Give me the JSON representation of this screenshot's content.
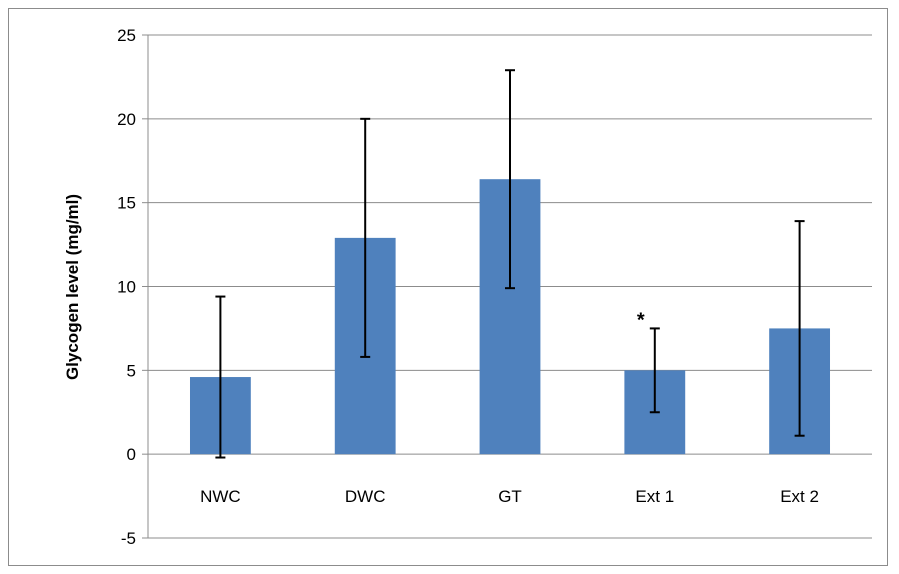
{
  "chart_data": {
    "type": "bar",
    "title": "",
    "xlabel": "",
    "ylabel": "Glycogen level (mg/ml)",
    "ylim": [
      -5,
      25
    ],
    "yticks": [
      -5,
      0,
      5,
      10,
      15,
      20,
      25
    ],
    "grid": true,
    "legend": "none",
    "categories": [
      "NWC",
      "DWC",
      "GT",
      "Ext 1",
      "Ext 2"
    ],
    "values": [
      4.6,
      12.9,
      16.4,
      5.0,
      7.5
    ],
    "error_bars": [
      4.8,
      7.1,
      6.5,
      2.5,
      6.4
    ],
    "annotations": [
      {
        "category": "Ext 1",
        "text": "*"
      }
    ],
    "colors": {
      "bar": "#4f81bd",
      "grid": "#8c8c8c",
      "error": "#000000"
    }
  }
}
